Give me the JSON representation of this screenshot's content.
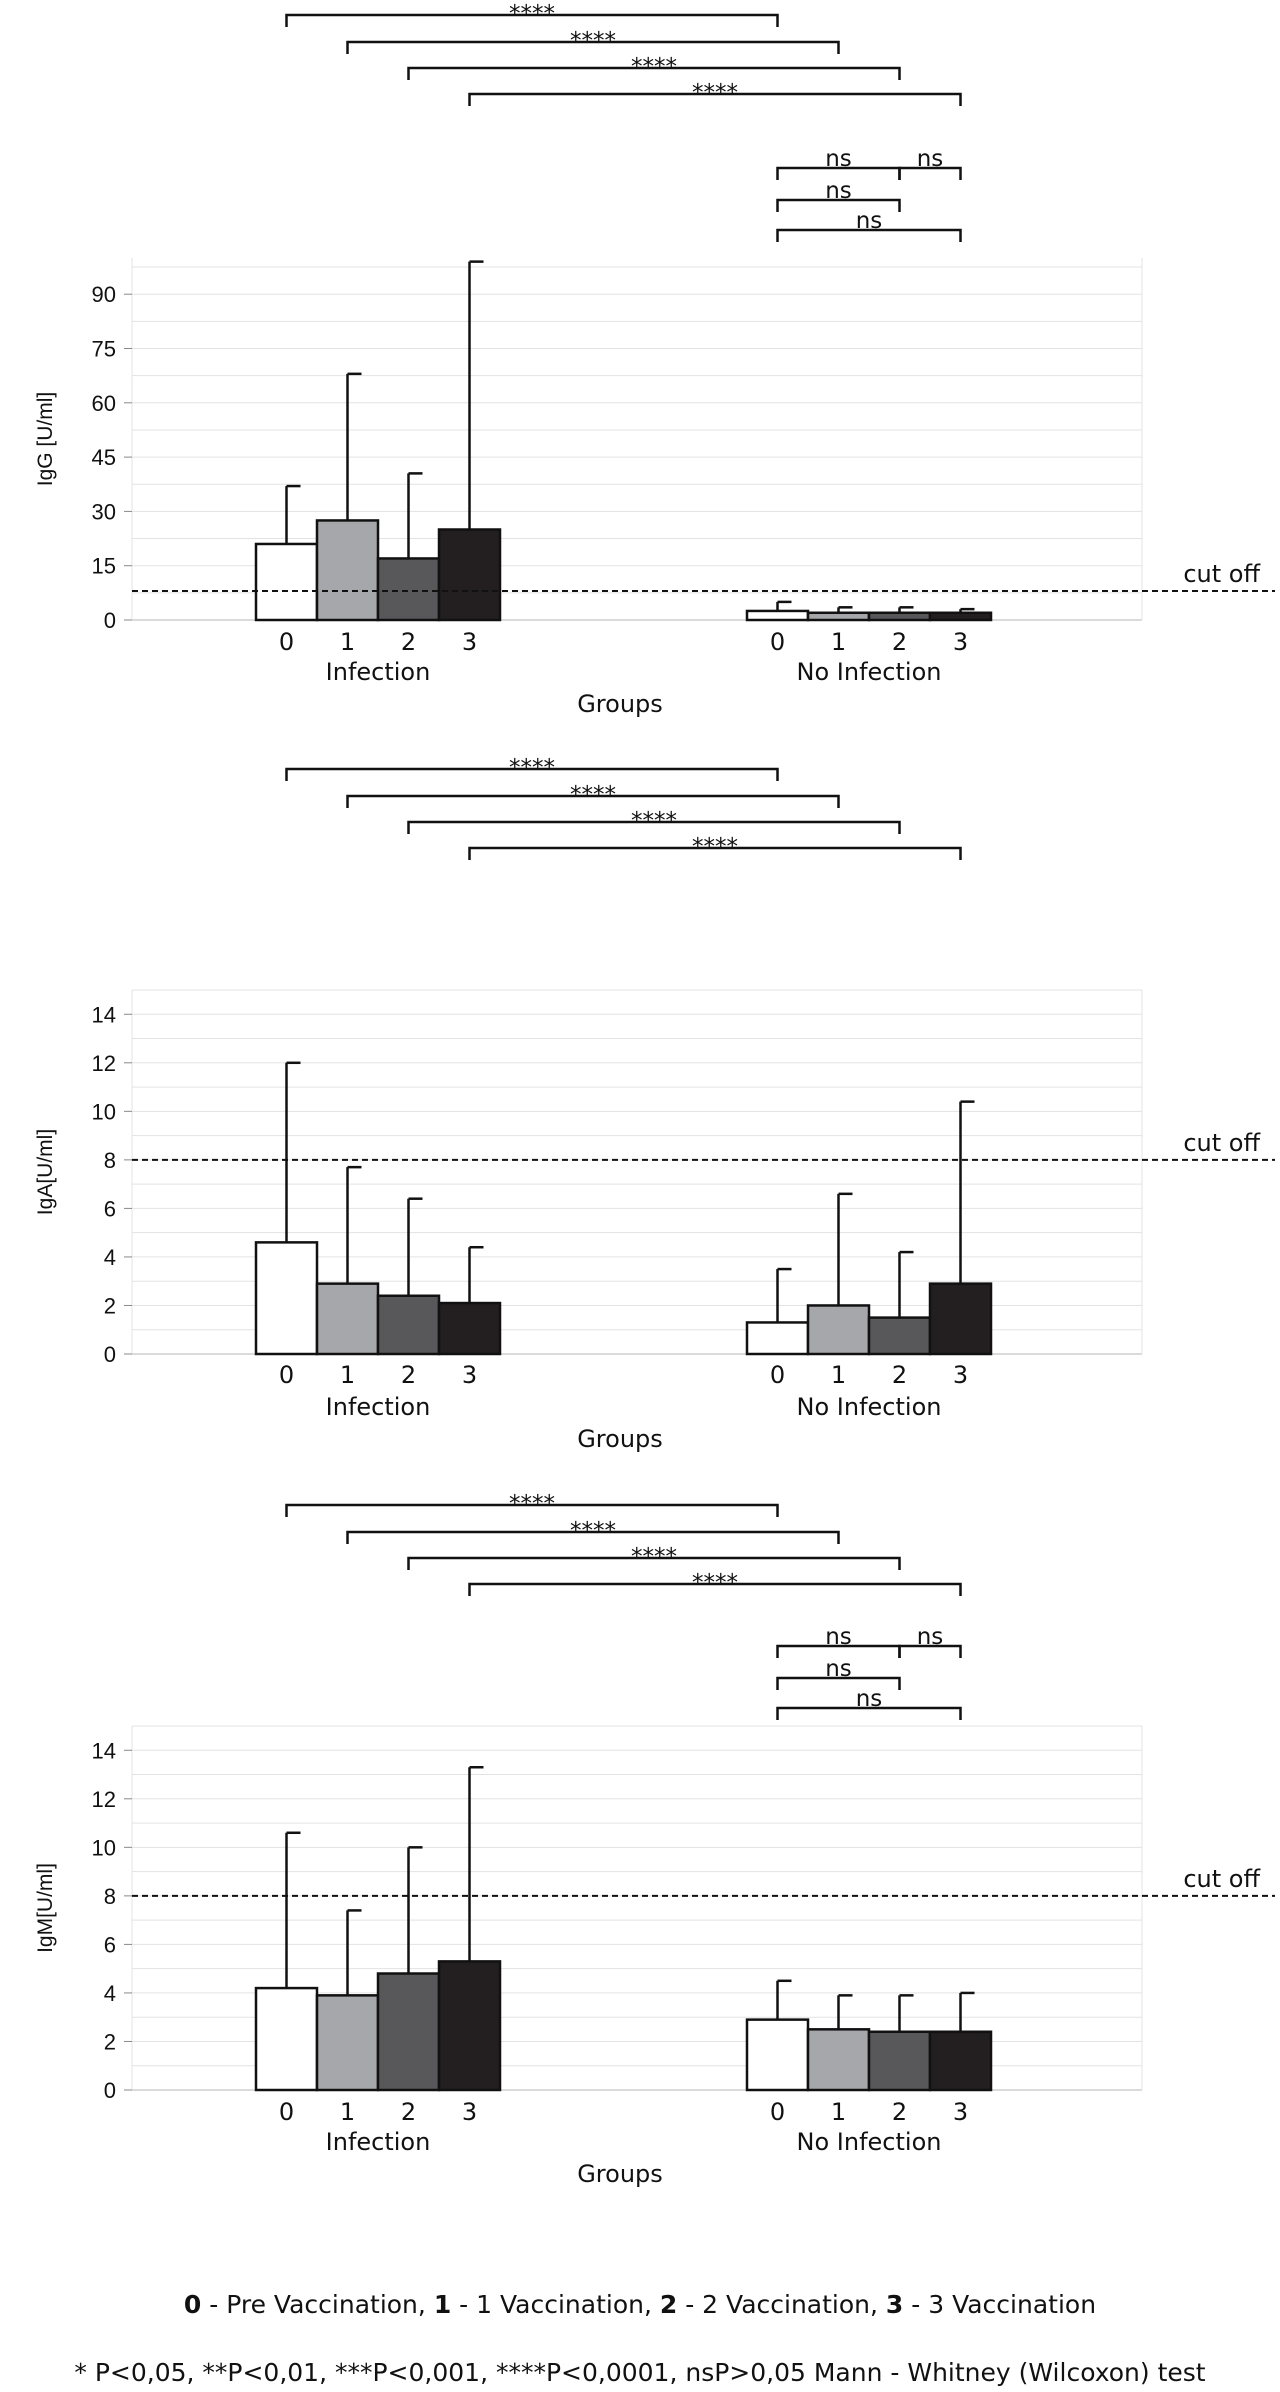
{
  "chart_data": [
    {
      "type": "bar",
      "xlabel": "Groups",
      "ylabel": "IgG [U/ml]",
      "ylim": [
        0,
        100
      ],
      "yticks": [
        0,
        15,
        30,
        45,
        60,
        75,
        90
      ],
      "group_labels": [
        "Infection",
        "No Infection"
      ],
      "categories": [
        "0",
        "1",
        "2",
        "3"
      ],
      "series": [
        {
          "name": "Infection",
          "values": [
            21,
            27.5,
            17,
            25
          ],
          "error_upper": [
            37,
            68,
            40.5,
            99
          ]
        },
        {
          "name": "No Infection",
          "values": [
            2.5,
            2,
            2,
            2
          ],
          "error_upper": [
            5,
            3.5,
            3.5,
            3
          ]
        }
      ],
      "cutoff": {
        "value": 8,
        "label": "cut off"
      },
      "significance": [
        {
          "from": "Infection 0",
          "to": "No Infection 0",
          "label": "****"
        },
        {
          "from": "Infection 1",
          "to": "No Infection 1",
          "label": "****"
        },
        {
          "from": "Infection 2",
          "to": "No Infection 2",
          "label": "****"
        },
        {
          "from": "Infection 3",
          "to": "No Infection 3",
          "label": "****"
        },
        {
          "from": "No Infection 0",
          "to": "No Infection 2",
          "label": "ns"
        },
        {
          "from": "No Infection 2",
          "to": "No Infection 3",
          "label": "ns"
        },
        {
          "from": "No Infection 0",
          "to": "No Infection 2",
          "label": "ns"
        },
        {
          "from": "No Infection 0",
          "to": "No Infection 3",
          "label": "ns"
        }
      ]
    },
    {
      "type": "bar",
      "xlabel": "Groups",
      "ylabel": "IgA[U/ml]",
      "ylim": [
        0,
        15
      ],
      "yticks": [
        0,
        2,
        4,
        6,
        8,
        10,
        12,
        14
      ],
      "group_labels": [
        "Infection",
        "No Infection"
      ],
      "categories": [
        "0",
        "1",
        "2",
        "3"
      ],
      "series": [
        {
          "name": "Infection",
          "values": [
            4.6,
            2.9,
            2.4,
            2.1
          ],
          "error_upper": [
            12,
            7.7,
            6.4,
            4.4
          ]
        },
        {
          "name": "No Infection",
          "values": [
            1.3,
            2,
            1.5,
            2.9
          ],
          "error_upper": [
            3.5,
            6.6,
            4.2,
            10.4
          ]
        }
      ],
      "cutoff": {
        "value": 8,
        "label": "cut off"
      },
      "significance": [
        {
          "from": "Infection 0",
          "to": "No Infection 0",
          "label": "****"
        },
        {
          "from": "Infection 1",
          "to": "No Infection 1",
          "label": "****"
        },
        {
          "from": "Infection 2",
          "to": "No Infection 2",
          "label": "****"
        },
        {
          "from": "Infection 3",
          "to": "No Infection 3",
          "label": "****"
        }
      ]
    },
    {
      "type": "bar",
      "xlabel": "Groups",
      "ylabel": "IgM[U/ml]",
      "ylim": [
        0,
        15
      ],
      "yticks": [
        0,
        2,
        4,
        6,
        8,
        10,
        12,
        14
      ],
      "group_labels": [
        "Infection",
        "No Infection"
      ],
      "categories": [
        "0",
        "1",
        "2",
        "3"
      ],
      "series": [
        {
          "name": "Infection",
          "values": [
            4.2,
            3.9,
            4.8,
            5.3
          ],
          "error_upper": [
            10.6,
            7.4,
            10,
            13.3
          ]
        },
        {
          "name": "No Infection",
          "values": [
            2.9,
            2.5,
            2.4,
            2.4
          ],
          "error_upper": [
            4.5,
            3.9,
            3.9,
            4
          ]
        }
      ],
      "cutoff": {
        "value": 8,
        "label": "cut off"
      },
      "significance": [
        {
          "from": "Infection 0",
          "to": "No Infection 0",
          "label": "****"
        },
        {
          "from": "Infection 1",
          "to": "No Infection 1",
          "label": "****"
        },
        {
          "from": "Infection 2",
          "to": "No Infection 2",
          "label": "****"
        },
        {
          "from": "Infection 3",
          "to": "No Infection 3",
          "label": "****"
        },
        {
          "from": "No Infection 0",
          "to": "No Infection 2",
          "label": "ns"
        },
        {
          "from": "No Infection 2",
          "to": "No Infection 3",
          "label": "ns"
        },
        {
          "from": "No Infection 0",
          "to": "No Infection 2",
          "label": "ns"
        },
        {
          "from": "No Infection 0",
          "to": "No Infection 3",
          "label": "ns"
        }
      ]
    }
  ],
  "bar_colors": [
    "#ffffff",
    "#a6a7ab",
    "#58585a",
    "#231f20"
  ],
  "legend": {
    "groups": [
      {
        "key": "0",
        "text": " - Pre Vaccination, "
      },
      {
        "key": "1",
        "text": " - 1 Vaccination, "
      },
      {
        "key": "2",
        "text": " - 2 Vaccination, "
      },
      {
        "key": "3",
        "text": " - 3 Vaccination"
      }
    ],
    "pvalues": "* P<0,05, **P<0,01, ***P<0,001, ****P<0,0001, nsP>0,05 Mann - Whitney (Wilcoxon) test"
  }
}
